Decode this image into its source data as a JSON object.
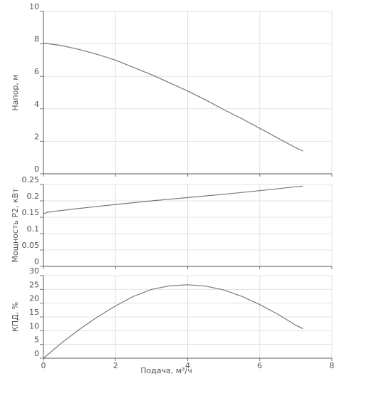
{
  "chart_data": [
    {
      "type": "line",
      "ylabel": "Напор, м",
      "xlabel": "",
      "xlim": [
        0,
        8
      ],
      "ylim": [
        0,
        10
      ],
      "xticks": [
        0,
        2,
        4,
        6,
        8
      ],
      "yticks": [
        0,
        2,
        4,
        6,
        8,
        10
      ],
      "ytick_labels": [
        "0",
        "2",
        "4",
        "6",
        "8",
        "10"
      ],
      "grid": true,
      "series": [
        {
          "x": [
            0,
            0.5,
            1,
            1.5,
            2,
            2.5,
            3,
            3.5,
            4,
            4.5,
            5,
            5.5,
            6,
            6.5,
            7,
            7.2
          ],
          "y": [
            8.05,
            7.9,
            7.65,
            7.35,
            7.0,
            6.55,
            6.1,
            5.6,
            5.1,
            4.55,
            3.95,
            3.4,
            2.8,
            2.2,
            1.6,
            1.4
          ],
          "color": "#777777"
        }
      ]
    },
    {
      "type": "line",
      "ylabel": "Мощность P2, кВт",
      "xlabel": "",
      "xlim": [
        0,
        8
      ],
      "ylim": [
        0,
        0.25
      ],
      "xticks": [
        0,
        2,
        4,
        6,
        8
      ],
      "yticks": [
        0,
        0.05,
        0.1,
        0.15,
        0.2,
        0.25
      ],
      "ytick_labels": [
        "0",
        "0.05",
        "0.1",
        "0.15",
        "0.2",
        "0.25"
      ],
      "grid": true,
      "series": [
        {
          "x": [
            0,
            0.1,
            0.3,
            1,
            2,
            3,
            4,
            5,
            6,
            7,
            7.2
          ],
          "y": [
            0.16,
            0.165,
            0.168,
            0.177,
            0.189,
            0.2,
            0.21,
            0.22,
            0.231,
            0.243,
            0.245
          ],
          "color": "#777777"
        }
      ]
    },
    {
      "type": "line",
      "ylabel": "КПД, %",
      "xlabel": "Подача, м³/ч",
      "xlim": [
        0,
        8
      ],
      "ylim": [
        0,
        30
      ],
      "xticks": [
        0,
        2,
        4,
        6,
        8
      ],
      "xtick_labels": [
        "0",
        "2",
        "4",
        "6",
        "8"
      ],
      "yticks": [
        0,
        5,
        10,
        15,
        20,
        25,
        30
      ],
      "ytick_labels": [
        "0",
        "5",
        "10",
        "15",
        "20",
        "25",
        "30"
      ],
      "grid": true,
      "series": [
        {
          "x": [
            0,
            0.5,
            1,
            1.5,
            2,
            2.5,
            3,
            3.5,
            4,
            4.5,
            5,
            5.5,
            6,
            6.5,
            7,
            7.2
          ],
          "y": [
            0,
            5.5,
            10.5,
            15,
            19,
            22.5,
            25,
            26.3,
            26.7,
            26.2,
            24.8,
            22.5,
            19.5,
            16,
            12,
            10.7
          ],
          "color": "#777777"
        }
      ]
    }
  ]
}
